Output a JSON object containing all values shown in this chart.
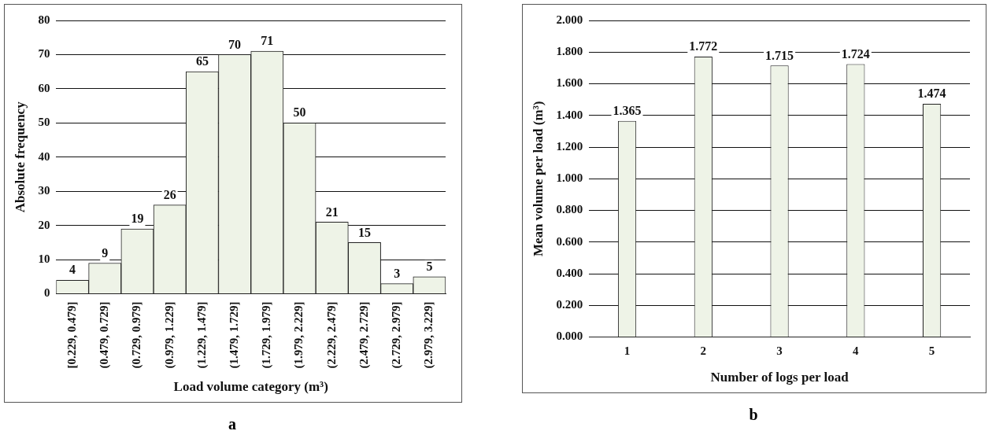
{
  "chart_data": [
    {
      "type": "bar",
      "xlabel": "Load volume category (m³)",
      "ylabel": "Absolute frequency",
      "categories": [
        "[0.229, 0.479]",
        "(0.479, 0.729]",
        "(0.729, 0.979]",
        "(0.979, 1.229]",
        "(1.229, 1.479]",
        "(1.479, 1.729]",
        "(1.729, 1.979]",
        "(1.979, 2.229]",
        "(2.229, 2.479]",
        "(2.479, 2.729]",
        "(2.729, 2.979]",
        "(2.979, 3.229]"
      ],
      "values": [
        4,
        9,
        19,
        26,
        65,
        70,
        71,
        50,
        21,
        15,
        3,
        5
      ],
      "color": "#eef3e7",
      "ylim": [
        0,
        80
      ],
      "yticks": [
        0,
        10,
        20,
        30,
        40,
        50,
        60,
        70,
        80
      ],
      "grid": "y",
      "legend": false,
      "data_labels": true,
      "annotations": [
        "a"
      ]
    },
    {
      "type": "bar",
      "xlabel": "Number of logs per load",
      "ylabel": "Mean volume per load (m³)",
      "categories": [
        "1",
        "2",
        "3",
        "4",
        "5"
      ],
      "values": [
        1.365,
        1.772,
        1.715,
        1.724,
        1.474
      ],
      "color": "#eef3e7",
      "ylim": [
        0,
        2
      ],
      "yticks": [
        {
          "value": 0,
          "label": "0.000"
        },
        {
          "value": 0.2,
          "label": "0.200"
        },
        {
          "value": 0.4,
          "label": "0.400"
        },
        {
          "value": 0.6,
          "label": "0.600"
        },
        {
          "value": 0.8,
          "label": "0.800"
        },
        {
          "value": 1,
          "label": "1.000"
        },
        {
          "value": 1.2,
          "label": "1.200"
        },
        {
          "value": 1.4,
          "label": "1.400"
        },
        {
          "value": 1.6,
          "label": "1.600"
        },
        {
          "value": 1.8,
          "label": "1.800"
        },
        {
          "value": 2,
          "label": "2.000"
        }
      ],
      "grid": "y",
      "legend": false,
      "data_labels": true,
      "annotations": [
        "b"
      ]
    }
  ]
}
